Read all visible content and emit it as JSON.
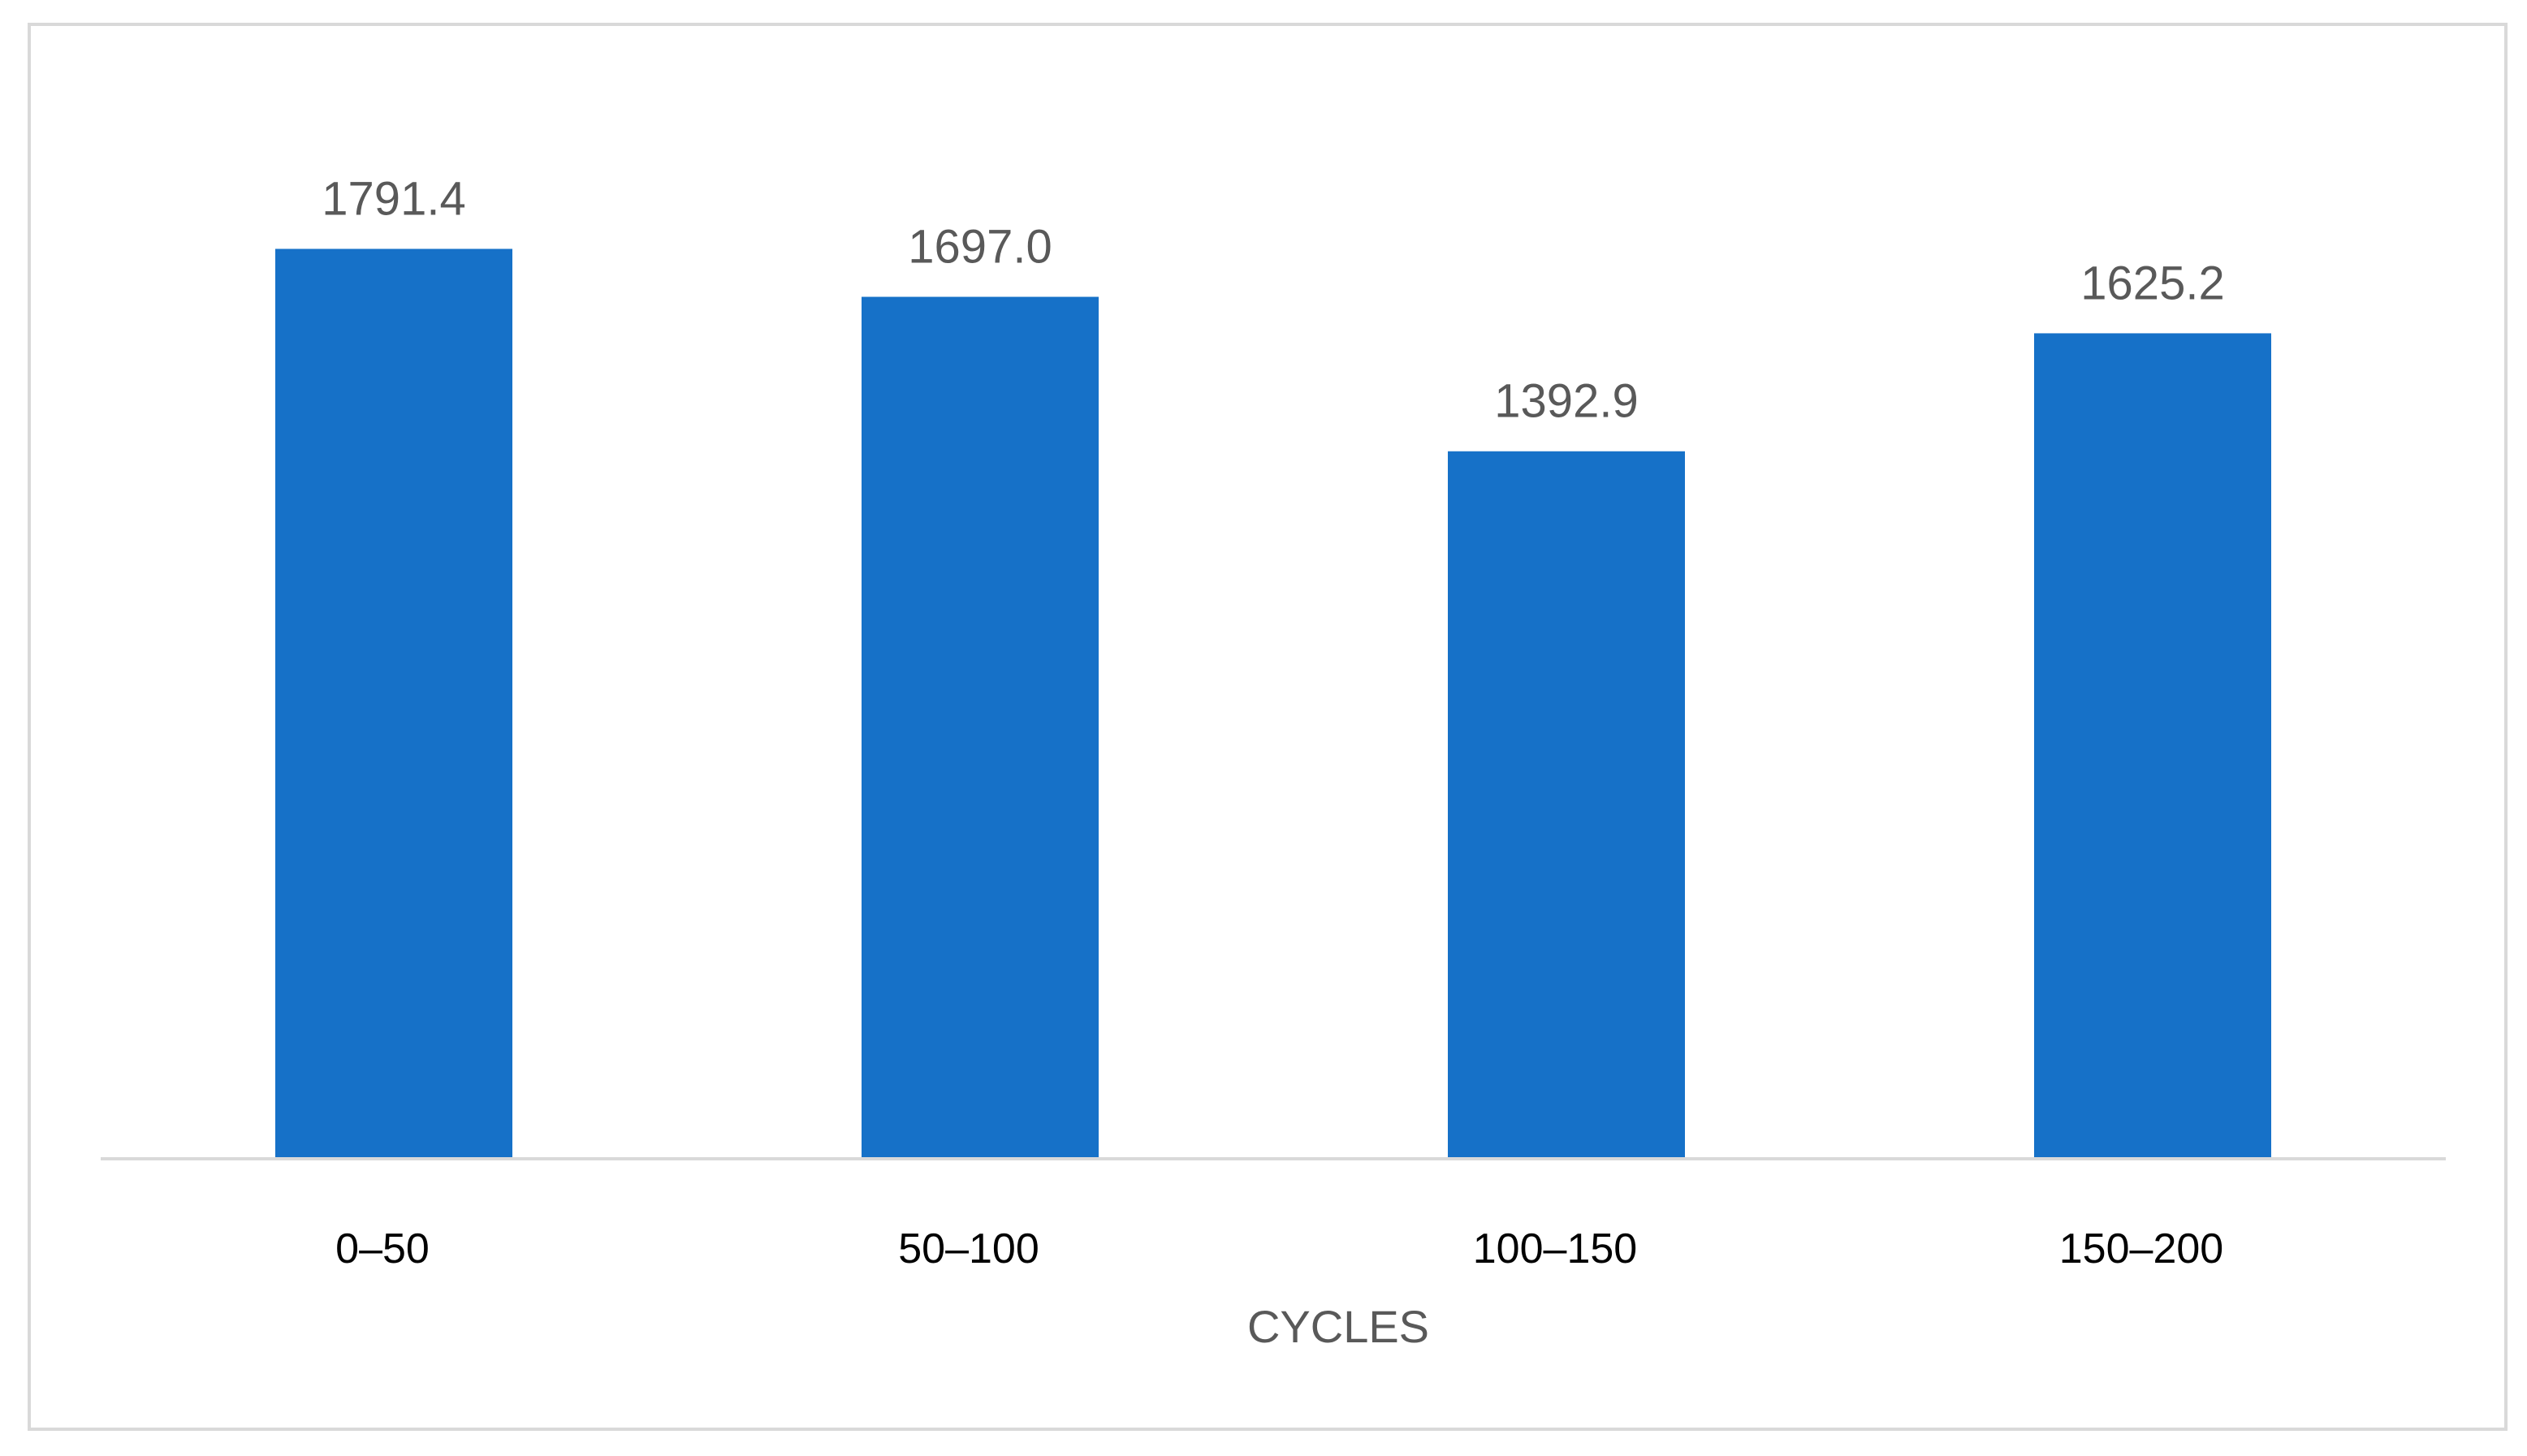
{
  "chart_data": {
    "type": "bar",
    "categories": [
      "0–50",
      "50–100",
      "100–150",
      "150–200"
    ],
    "values": [
      1791.4,
      1697.0,
      1392.9,
      1625.2
    ],
    "data_labels": [
      "1791.4",
      "1697.0",
      "1392.9",
      "1625.2"
    ],
    "title": "",
    "xlabel": "CYCLES",
    "ylabel": "",
    "ylim": [
      0,
      1900
    ],
    "grid": false,
    "legend": "none",
    "bar_color": "#1671c8",
    "axis_color": "#d9d9d9"
  }
}
